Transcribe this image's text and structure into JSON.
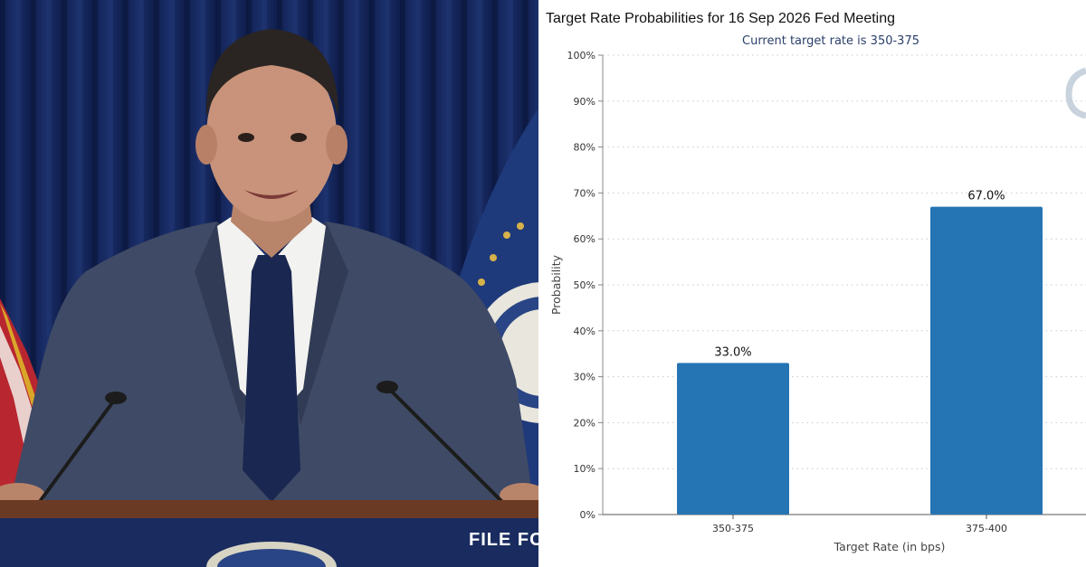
{
  "photo": {
    "podium_text": "FILE FO"
  },
  "chart_data": {
    "type": "bar",
    "title": "Target Rate Probabilities for 16 Sep 2026 Fed Meeting",
    "subtitle": "Current target rate is 350-375",
    "xlabel": "Target Rate (in bps)",
    "ylabel": "Probability",
    "categories": [
      "350-375",
      "375-400"
    ],
    "values": [
      33.0,
      67.0
    ],
    "value_labels": [
      "33.0%",
      "67.0%"
    ],
    "ylim": [
      0,
      100
    ],
    "yticks": [
      0,
      10,
      20,
      30,
      40,
      50,
      60,
      70,
      80,
      90,
      100
    ],
    "ytick_labels": [
      "0%",
      "10%",
      "20%",
      "30%",
      "40%",
      "50%",
      "60%",
      "70%",
      "80%",
      "90%",
      "100%"
    ],
    "grid": true,
    "bar_color": "#2575b4"
  }
}
